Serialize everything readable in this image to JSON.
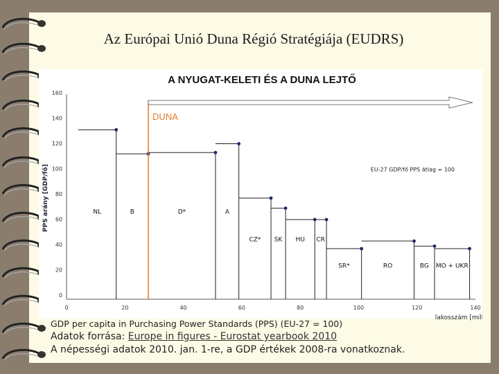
{
  "slide": {
    "title": "Az Európai Unió Duna Régió Stratégiája (EUDRS)"
  },
  "notes": {
    "source_line_1": "GDP per capita in Purchasing Power Standards (PPS) (EU-27 = 100)",
    "source_prefix": "Adatok forrása: ",
    "source_link": "Europe in figures - Eurostat yearbook 2010",
    "population_note": "A népességi adatok 2010. jan. 1-re, a GDP értékek 2008-ra vonatkoznak."
  },
  "chart_data": {
    "type": "step",
    "title": "A NYUGAT-KELETI ÉS A DUNA LEJTŐ",
    "ylabel": "PPS arány [GDP/fő]",
    "xlabel": "lakosszám [millió fő]",
    "xlim": [
      0,
      140
    ],
    "ylim": [
      0,
      160
    ],
    "x_ticks": [
      0,
      20,
      40,
      60,
      80,
      100,
      120,
      140
    ],
    "x_tick_labels": [
      "0",
      "20",
      "40",
      "60",
      "80",
      "100",
      "120",
      "140"
    ],
    "y_ticks": [
      0,
      20,
      40,
      60,
      80,
      100,
      120,
      140,
      160
    ],
    "y_tick_labels": [
      "0",
      "20",
      "40",
      "60",
      "80",
      "100",
      "120",
      "140",
      "160"
    ],
    "annotations": {
      "arrow_label": "DUNA",
      "reference_label": "EU-27 GDP/fő PPS átlag = 100"
    },
    "grid": false,
    "series": [
      {
        "label": "NL",
        "x_start": 4,
        "x_end": 17,
        "y": 134,
        "label_y": 70
      },
      {
        "label": "B",
        "x_start": 17,
        "x_end": 28,
        "y": 115,
        "label_y": 70
      },
      {
        "label": "D*",
        "x_start": 28,
        "x_end": 51,
        "y": 116,
        "label_y": 70
      },
      {
        "label": "A",
        "x_start": 51,
        "x_end": 59,
        "y": 123,
        "label_y": 70
      },
      {
        "label": "CZ*",
        "x_start": 59,
        "x_end": 70,
        "y": 80,
        "label_y": 48
      },
      {
        "label": "SK",
        "x_start": 70,
        "x_end": 75,
        "y": 72,
        "label_y": 48
      },
      {
        "label": "HU",
        "x_start": 75,
        "x_end": 85,
        "y": 63,
        "label_y": 48
      },
      {
        "label": "CR",
        "x_start": 85,
        "x_end": 89,
        "y": 63,
        "label_y": 48
      },
      {
        "label": "SR*",
        "x_start": 89,
        "x_end": 101,
        "y": 40,
        "label_y": 27
      },
      {
        "label": "RO",
        "x_start": 101,
        "x_end": 119,
        "y": 46,
        "label_y": 27
      },
      {
        "label": "BG",
        "x_start": 119,
        "x_end": 126,
        "y": 42,
        "label_y": 27
      },
      {
        "label": "MO + UKR",
        "x_start": 126,
        "x_end": 138,
        "y": 40,
        "label_y": 27
      }
    ],
    "danube_start_x": 28
  }
}
